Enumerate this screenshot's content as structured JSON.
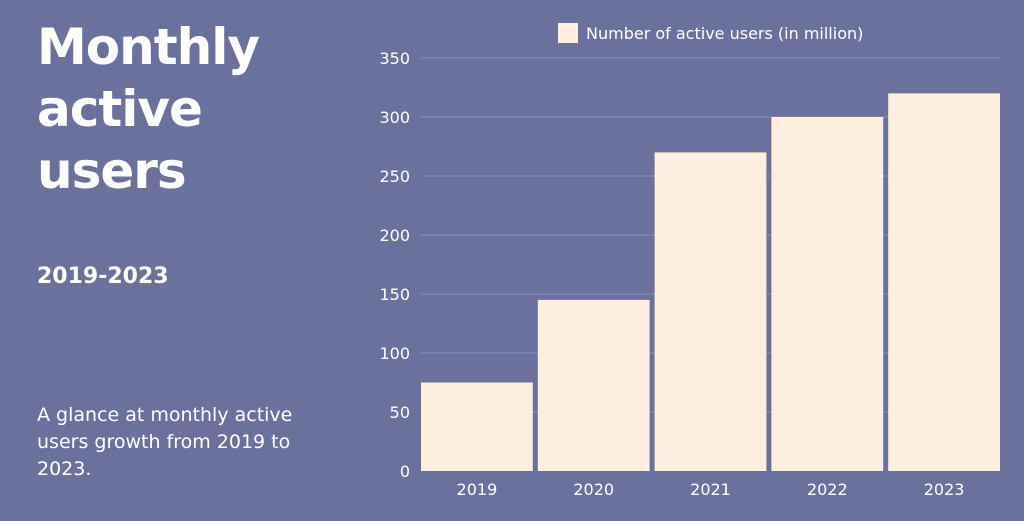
{
  "title": "Monthly active users",
  "title_lines": [
    "Monthly",
    "active users"
  ],
  "subtitle": "2019-2023",
  "description": "A glance at monthly active users growth from 2019 to 2023.",
  "colors": {
    "background": "#6b719d",
    "bar": "#fdeedd",
    "text": "#ffffff",
    "grid": "#8a90b8"
  },
  "chart_data": {
    "type": "bar",
    "title": "",
    "xlabel": "",
    "ylabel": "",
    "categories": [
      "2019",
      "2020",
      "2021",
      "2022",
      "2023"
    ],
    "series": [
      {
        "name": "Number of active users (in million)",
        "values": [
          75,
          145,
          270,
          300,
          320
        ]
      }
    ],
    "ylim": [
      0,
      350
    ],
    "yticks": [
      0,
      50,
      100,
      150,
      200,
      250,
      300,
      350
    ],
    "grid": true,
    "legend": "top"
  }
}
